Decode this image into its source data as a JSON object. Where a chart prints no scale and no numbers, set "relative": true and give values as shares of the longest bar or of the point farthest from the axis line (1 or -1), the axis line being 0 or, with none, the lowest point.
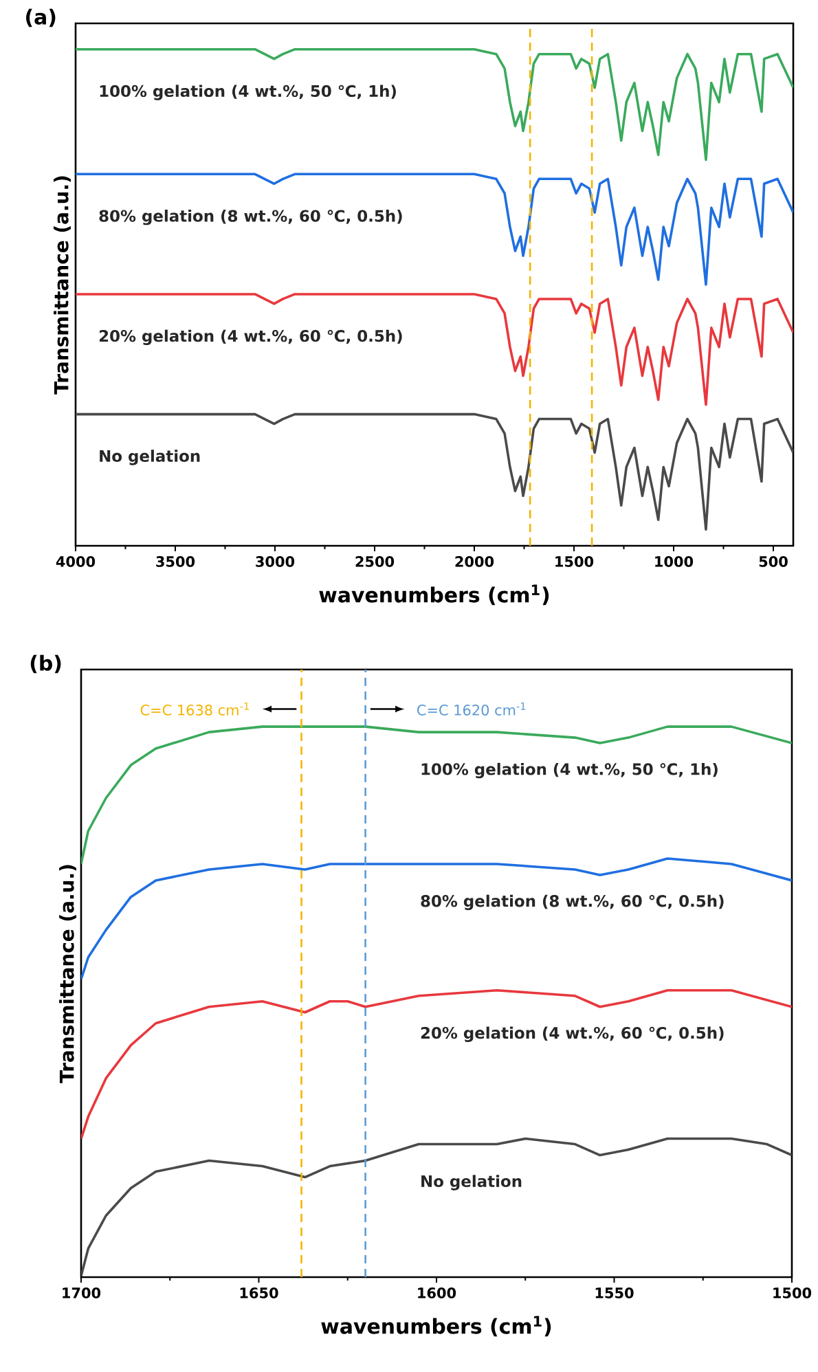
{
  "chart_data": [
    {
      "type": "line",
      "title": "(a)",
      "xlabel": "wavenumbers (cm$^{1}$)",
      "ylabel": "Transmittance (a.u.)",
      "relative": true,
      "xlim": [
        4000,
        400
      ],
      "xticks": [
        4000,
        3500,
        3000,
        2500,
        2000,
        1500,
        1000,
        500
      ],
      "ref_lines": [
        {
          "axis": "x",
          "value": 1720,
          "color": "#f5b400",
          "line_style": "dashed"
        },
        {
          "axis": "x",
          "value": 1410,
          "color": "#f5b400",
          "line_style": "dashed"
        }
      ],
      "x": [
        4000,
        3100,
        3004,
        2960,
        2900,
        2000,
        1890,
        1848,
        1821,
        1795,
        1768,
        1755,
        1728,
        1702,
        1675,
        1516,
        1489,
        1463,
        1423,
        1396,
        1370,
        1330,
        1290,
        1263,
        1237,
        1197,
        1157,
        1130,
        1104,
        1077,
        1051,
        1024,
        984,
        931,
        891,
        878,
        838,
        811,
        772,
        745,
        718,
        678,
        612,
        559,
        546,
        479,
        400
      ],
      "series": [
        {
          "name": "100% gelation (4 wt.%, 50 ℃, 1h)",
          "color": "#3aaa5c",
          "values": [
            1.0,
            1.0,
            0.98,
            0.99,
            1.0,
            1.0,
            0.99,
            0.96,
            0.89,
            0.84,
            0.87,
            0.83,
            0.89,
            0.97,
            0.99,
            0.99,
            0.96,
            0.98,
            0.97,
            0.92,
            0.98,
            0.99,
            0.89,
            0.81,
            0.89,
            0.93,
            0.83,
            0.89,
            0.84,
            0.78,
            0.89,
            0.85,
            0.94,
            0.99,
            0.96,
            0.93,
            0.77,
            0.93,
            0.89,
            0.98,
            0.91,
            0.99,
            0.99,
            0.87,
            0.98,
            0.99,
            0.92
          ]
        },
        {
          "name": "80% gelation (8 wt.%, 60 ℃, 0.5h)",
          "color": "#1f6fe0",
          "values": [
            0.74,
            0.74,
            0.72,
            0.73,
            0.74,
            0.74,
            0.73,
            0.7,
            0.63,
            0.58,
            0.61,
            0.57,
            0.63,
            0.71,
            0.73,
            0.73,
            0.7,
            0.72,
            0.71,
            0.66,
            0.72,
            0.73,
            0.63,
            0.55,
            0.63,
            0.67,
            0.57,
            0.63,
            0.58,
            0.52,
            0.63,
            0.59,
            0.68,
            0.73,
            0.7,
            0.67,
            0.51,
            0.67,
            0.63,
            0.72,
            0.65,
            0.73,
            0.73,
            0.61,
            0.72,
            0.73,
            0.66
          ]
        },
        {
          "name": "20% gelation (4 wt.%, 60 ℃, 0.5h)",
          "color": "#e8383d",
          "values": [
            0.49,
            0.49,
            0.47,
            0.48,
            0.49,
            0.49,
            0.48,
            0.45,
            0.38,
            0.33,
            0.36,
            0.32,
            0.38,
            0.46,
            0.48,
            0.48,
            0.45,
            0.47,
            0.46,
            0.41,
            0.47,
            0.48,
            0.38,
            0.3,
            0.38,
            0.42,
            0.32,
            0.38,
            0.33,
            0.27,
            0.38,
            0.34,
            0.43,
            0.48,
            0.45,
            0.42,
            0.26,
            0.42,
            0.38,
            0.47,
            0.4,
            0.48,
            0.48,
            0.36,
            0.47,
            0.48,
            0.41
          ]
        },
        {
          "name": "No gelation",
          "color": "#4a4a4a",
          "values": [
            0.24,
            0.24,
            0.22,
            0.23,
            0.24,
            0.24,
            0.23,
            0.2,
            0.13,
            0.08,
            0.11,
            0.07,
            0.13,
            0.21,
            0.23,
            0.23,
            0.2,
            0.22,
            0.21,
            0.16,
            0.22,
            0.23,
            0.13,
            0.05,
            0.13,
            0.17,
            0.07,
            0.13,
            0.08,
            0.02,
            0.13,
            0.09,
            0.18,
            0.23,
            0.2,
            0.17,
            0.0,
            0.17,
            0.13,
            0.22,
            0.15,
            0.23,
            0.23,
            0.1,
            0.22,
            0.23,
            0.16
          ]
        }
      ]
    },
    {
      "type": "line",
      "title": "(b)",
      "xlabel": "wavenumbers (cm$^{1}$)",
      "ylabel": "Transmittance (a.u.)",
      "relative": true,
      "xlim": [
        1700,
        1500
      ],
      "xticks": [
        1700,
        1650,
        1600,
        1550,
        1500
      ],
      "ref_lines": [
        {
          "axis": "x",
          "value": 1638,
          "label": "C=C 1638 cm$^{-1}$",
          "color": "#f5b400",
          "line_style": "dashed"
        },
        {
          "axis": "x",
          "value": 1620,
          "label": "C=C 1620 cm$^{-1}$",
          "color": "#5b9bd5",
          "line_style": "dashed"
        }
      ],
      "series": [
        {
          "name": "100% gelation (4 wt.%, 50 ℃, 1h)",
          "color": "#3aaa5c",
          "x": [
            1700,
            1698,
            1693,
            1686,
            1679,
            1664,
            1649,
            1637,
            1620,
            1605,
            1583,
            1561,
            1554,
            1546,
            1535,
            1517,
            1500
          ],
          "values": [
            0.75,
            0.81,
            0.87,
            0.93,
            0.96,
            0.99,
            1.0,
            1.0,
            1.0,
            0.99,
            0.99,
            0.98,
            0.97,
            0.98,
            1.0,
            1.0,
            0.97
          ]
        },
        {
          "name": "80% gelation (8 wt.%, 60 ℃, 0.5h)",
          "color": "#1f6fe0",
          "x": [
            1700,
            1698,
            1693,
            1686,
            1679,
            1664,
            1649,
            1637,
            1630,
            1620,
            1605,
            1583,
            1561,
            1554,
            1546,
            1535,
            1517,
            1500
          ],
          "values": [
            0.54,
            0.58,
            0.63,
            0.69,
            0.72,
            0.74,
            0.75,
            0.74,
            0.75,
            0.75,
            0.75,
            0.75,
            0.74,
            0.73,
            0.74,
            0.76,
            0.75,
            0.72
          ]
        },
        {
          "name": "20% gelation (4 wt.%, 60 ℃, 0.5h)",
          "color": "#e8383d",
          "x": [
            1700,
            1698,
            1693,
            1686,
            1679,
            1664,
            1649,
            1637,
            1630,
            1625,
            1620,
            1605,
            1583,
            1561,
            1554,
            1546,
            1535,
            1517,
            1500
          ],
          "values": [
            0.25,
            0.29,
            0.36,
            0.42,
            0.46,
            0.49,
            0.5,
            0.48,
            0.5,
            0.5,
            0.49,
            0.51,
            0.52,
            0.51,
            0.49,
            0.5,
            0.52,
            0.52,
            0.49
          ]
        },
        {
          "name": "No gelation",
          "color": "#4a4a4a",
          "x": [
            1700,
            1698,
            1693,
            1686,
            1679,
            1664,
            1649,
            1637,
            1630,
            1620,
            1605,
            1583,
            1575,
            1561,
            1554,
            1546,
            1535,
            1517,
            1507,
            1500
          ],
          "values": [
            0.0,
            0.05,
            0.11,
            0.16,
            0.19,
            0.21,
            0.2,
            0.18,
            0.2,
            0.21,
            0.24,
            0.24,
            0.25,
            0.24,
            0.22,
            0.23,
            0.25,
            0.25,
            0.24,
            0.22
          ]
        }
      ]
    }
  ]
}
